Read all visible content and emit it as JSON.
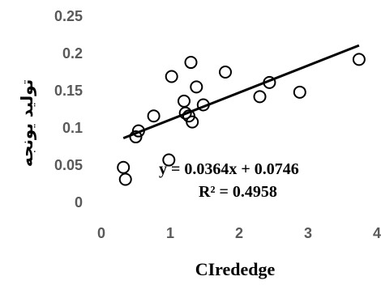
{
  "chart_data": {
    "type": "scatter",
    "title": "",
    "xlabel": "CIrededge",
    "ylabel": "تولید یونجه",
    "xlim": [
      0,
      4
    ],
    "ylim": [
      0,
      0.25
    ],
    "x_ticks": [
      "0",
      "1",
      "2",
      "3",
      "4"
    ],
    "y_ticks": [
      "0",
      "0.05",
      "0.1",
      "0.15",
      "0.2",
      "0.25"
    ],
    "grid": false,
    "legend": "none",
    "marker": "open-circle",
    "points": [
      {
        "x": 0.32,
        "y": 0.047
      },
      {
        "x": 0.35,
        "y": 0.031
      },
      {
        "x": 0.5,
        "y": 0.088
      },
      {
        "x": 0.54,
        "y": 0.096
      },
      {
        "x": 0.76,
        "y": 0.116
      },
      {
        "x": 0.98,
        "y": 0.057
      },
      {
        "x": 1.02,
        "y": 0.169
      },
      {
        "x": 1.2,
        "y": 0.136
      },
      {
        "x": 1.22,
        "y": 0.12
      },
      {
        "x": 1.27,
        "y": 0.116
      },
      {
        "x": 1.3,
        "y": 0.188
      },
      {
        "x": 1.32,
        "y": 0.108
      },
      {
        "x": 1.38,
        "y": 0.155
      },
      {
        "x": 1.48,
        "y": 0.131
      },
      {
        "x": 1.8,
        "y": 0.175
      },
      {
        "x": 2.3,
        "y": 0.142
      },
      {
        "x": 2.44,
        "y": 0.161
      },
      {
        "x": 2.88,
        "y": 0.148
      },
      {
        "x": 3.74,
        "y": 0.192
      }
    ],
    "trendline": {
      "slope": 0.0364,
      "intercept": 0.0746,
      "x_range": [
        0.32,
        3.74
      ]
    },
    "annotations": {
      "equation": "y = 0.0364x + 0.0746",
      "r_squared": "R² = 0.4958"
    },
    "colors": {
      "marker_stroke": "#000000",
      "trendline": "#000000",
      "tick_text": "#595959"
    }
  }
}
